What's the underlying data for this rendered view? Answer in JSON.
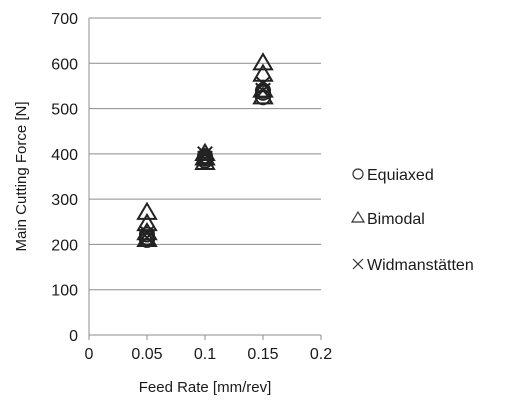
{
  "chart_data": {
    "type": "scatter",
    "xlabel": "Feed Rate [mm/rev]",
    "ylabel": "Main Cutting Force [N]",
    "xlim": [
      0,
      0.2
    ],
    "ylim": [
      0,
      700
    ],
    "x_ticks": [
      "0",
      "0.05",
      "0.1",
      "0.15",
      "0.2"
    ],
    "y_ticks": [
      "0",
      "100",
      "200",
      "300",
      "400",
      "500",
      "600",
      "700"
    ],
    "grid": "horizontal",
    "legend_position": "right",
    "series": [
      {
        "name": "Equiaxed",
        "marker": "circle",
        "points": [
          [
            0.05,
            210
          ],
          [
            0.05,
            222
          ],
          [
            0.05,
            215
          ],
          [
            0.1,
            385
          ],
          [
            0.1,
            390
          ],
          [
            0.1,
            395
          ],
          [
            0.15,
            525
          ],
          [
            0.15,
            535
          ],
          [
            0.15,
            540
          ]
        ]
      },
      {
        "name": "Bimodal",
        "marker": "triangle",
        "points": [
          [
            0.05,
            210
          ],
          [
            0.05,
            225
          ],
          [
            0.05,
            245
          ],
          [
            0.05,
            270
          ],
          [
            0.1,
            380
          ],
          [
            0.1,
            390
          ],
          [
            0.1,
            400
          ],
          [
            0.15,
            525
          ],
          [
            0.15,
            540
          ],
          [
            0.15,
            575
          ],
          [
            0.15,
            600
          ]
        ]
      },
      {
        "name": "Widmanstätten",
        "marker": "x",
        "points": [
          [
            0.05,
            215
          ],
          [
            0.05,
            225
          ],
          [
            0.1,
            390
          ],
          [
            0.1,
            400
          ],
          [
            0.15,
            540
          ],
          [
            0.15,
            555
          ]
        ]
      }
    ],
    "marker_color": "#222222",
    "grid_color": "#8c8c8c"
  }
}
